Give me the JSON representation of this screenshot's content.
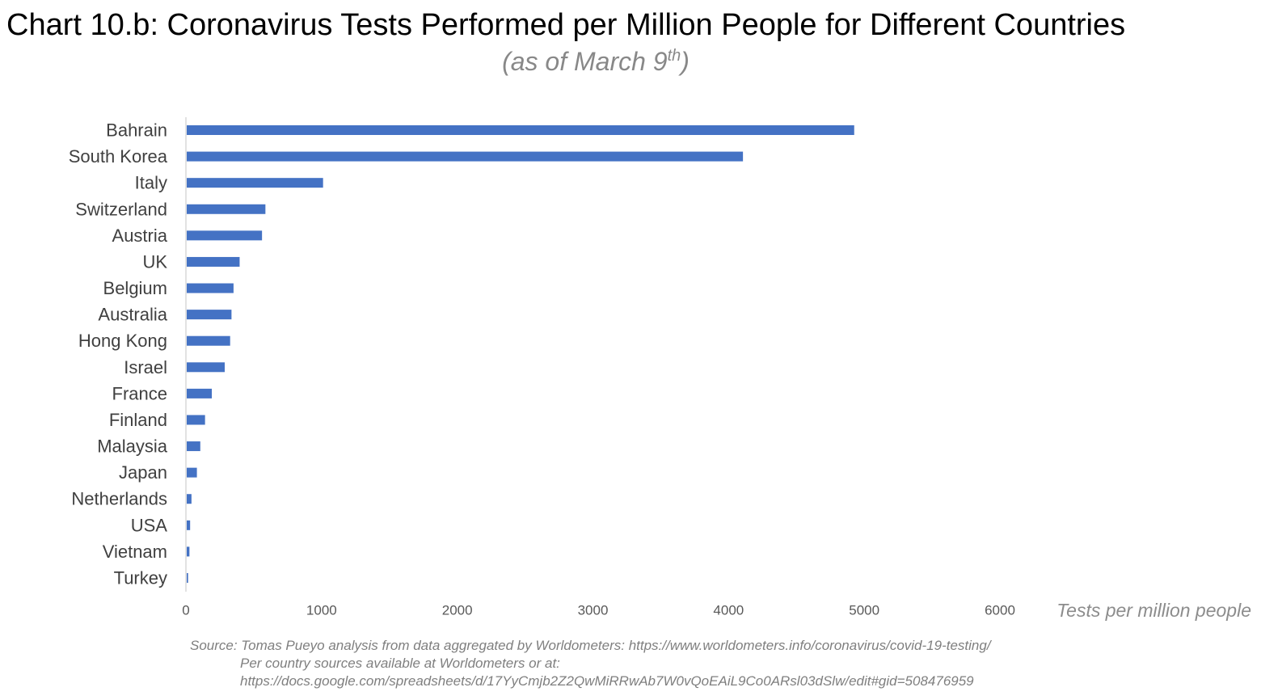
{
  "title": "Chart 10.b: Coronavirus Tests Performed per Million People for Different Countries",
  "subtitle": {
    "prefix": "(as of March 9",
    "sup": "th",
    "suffix": ")"
  },
  "source": {
    "line1": "Source: Tomas Pueyo analysis from data aggregated by Worldometers: https://www.worldometers.info/coronavirus/covid-19-testing/",
    "line2": "Per country sources available at Worldometers or at:",
    "line3": "https://docs.google.com/spreadsheets/d/17YyCmjb2Z2QwMiRRwAb7W0vQoEAiL9Co0ARsl03dSlw/edit#gid=508476959"
  },
  "chart_data": {
    "type": "bar",
    "orientation": "horizontal",
    "categories": [
      "Bahrain",
      "South Korea",
      "Italy",
      "Switzerland",
      "Austria",
      "UK",
      "Belgium",
      "Australia",
      "Hong Kong",
      "Israel",
      "France",
      "Finland",
      "Malaysia",
      "Japan",
      "Netherlands",
      "USA",
      "Vietnam",
      "Turkey"
    ],
    "values": [
      4920,
      4100,
      1005,
      580,
      555,
      390,
      345,
      330,
      320,
      280,
      185,
      135,
      100,
      75,
      35,
      25,
      20,
      10
    ],
    "xlabel": "Tests per million people",
    "ylabel": "",
    "xlim": [
      0,
      6000
    ],
    "xticks": [
      0,
      1000,
      2000,
      3000,
      4000,
      5000,
      6000
    ],
    "grid": false,
    "legend": "none",
    "bar_color": "#4472c4",
    "axis_color": "#d9d9d9",
    "tick_color": "#595959"
  }
}
